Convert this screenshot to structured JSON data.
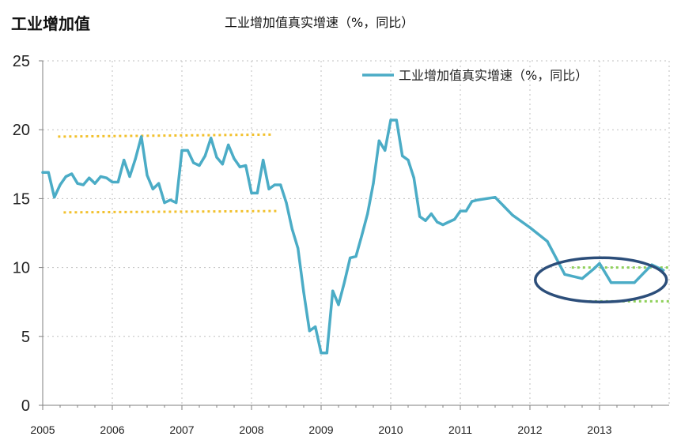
{
  "header": {
    "title": "工业增加值",
    "subtitle": "工业增加值真实增速（%，同比）"
  },
  "colors": {
    "series": "#4bacc6",
    "band_yellow": "#f2c12e",
    "band_green": "#8fd05a",
    "ellipse": "#2c4e7a",
    "grid": "#bfbfbf",
    "axis": "#7f7f7f"
  },
  "chart_data": {
    "type": "line",
    "title": "工业增加值真实增速（%，同比）",
    "xlabel": "",
    "ylabel": "",
    "xlim": [
      2005,
      2014
    ],
    "ylim": [
      0,
      25
    ],
    "yticks": [
      0,
      5,
      10,
      15,
      20,
      25
    ],
    "ytick_labels": [
      "0",
      "5",
      "10",
      "15",
      "20",
      "25"
    ],
    "xticks": [
      2005,
      2006,
      2007,
      2008,
      2009,
      2010,
      2011,
      2012,
      2013
    ],
    "xtick_labels": [
      "2005",
      "2006",
      "2007",
      "2008",
      "2009",
      "2010",
      "2011",
      "2012",
      "2013"
    ],
    "grid": true,
    "legend_position": "top-right",
    "series": [
      {
        "name": "工业增加值真实增速（%，同比）",
        "x": [
          2005.0,
          2005.083,
          2005.167,
          2005.25,
          2005.333,
          2005.417,
          2005.5,
          2005.583,
          2005.667,
          2005.75,
          2005.833,
          2005.917,
          2006.0,
          2006.083,
          2006.167,
          2006.25,
          2006.333,
          2006.417,
          2006.5,
          2006.583,
          2006.667,
          2006.75,
          2006.833,
          2006.917,
          2007.0,
          2007.083,
          2007.167,
          2007.25,
          2007.333,
          2007.417,
          2007.5,
          2007.583,
          2007.667,
          2007.75,
          2007.833,
          2007.917,
          2008.0,
          2008.083,
          2008.167,
          2008.25,
          2008.333,
          2008.417,
          2008.5,
          2008.583,
          2008.667,
          2008.75,
          2008.833,
          2008.917,
          2009.0,
          2009.083,
          2009.167,
          2009.25,
          2009.333,
          2009.417,
          2009.5,
          2009.583,
          2009.667,
          2009.75,
          2009.833,
          2009.917,
          2010.0,
          2010.083,
          2010.167,
          2010.25,
          2010.333,
          2010.417,
          2010.5,
          2010.583,
          2010.667,
          2010.75,
          2010.833,
          2010.917,
          2011.0,
          2011.083,
          2011.167,
          2011.25,
          2011.5,
          2011.75,
          2012.0,
          2012.25,
          2012.5,
          2012.75,
          2012.917,
          2013.0,
          2013.167,
          2013.333,
          2013.5,
          2013.75,
          2013.917
        ],
        "values": [
          16.9,
          16.9,
          15.1,
          16.0,
          16.6,
          16.8,
          16.1,
          16.0,
          16.5,
          16.1,
          16.6,
          16.5,
          16.2,
          16.2,
          17.8,
          16.6,
          17.9,
          19.5,
          16.7,
          15.7,
          16.1,
          14.7,
          14.9,
          14.7,
          18.5,
          18.5,
          17.6,
          17.4,
          18.1,
          19.4,
          18.0,
          17.5,
          18.9,
          17.9,
          17.3,
          17.4,
          15.4,
          15.4,
          17.8,
          15.7,
          16.0,
          16.0,
          14.7,
          12.8,
          11.4,
          8.2,
          5.4,
          5.7,
          3.8,
          3.8,
          8.3,
          7.3,
          8.9,
          10.7,
          10.8,
          12.3,
          13.9,
          16.1,
          19.2,
          18.5,
          20.7,
          20.7,
          18.1,
          17.8,
          16.5,
          13.7,
          13.4,
          13.9,
          13.3,
          13.1,
          13.3,
          13.5,
          14.1,
          14.1,
          14.8,
          14.9,
          15.1,
          13.8,
          12.9,
          11.9,
          9.5,
          9.2,
          9.9,
          10.3,
          8.9,
          8.9,
          8.9,
          10.2,
          9.8
        ]
      }
    ]
  }
}
